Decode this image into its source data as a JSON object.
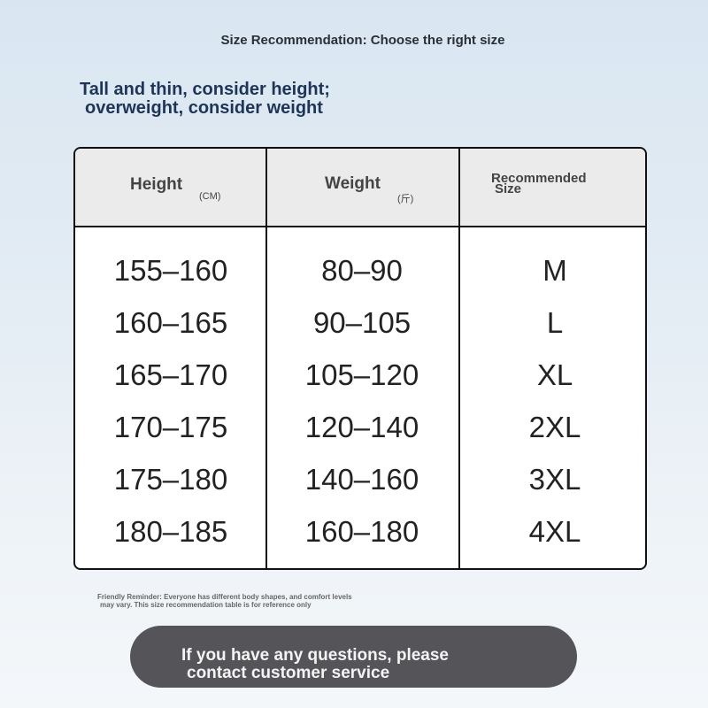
{
  "title": "Size Recommendation: Choose the right size",
  "tip": {
    "line1": "Tall and thin, consider height;",
    "line2": "overweight, consider weight"
  },
  "table": {
    "headers": [
      {
        "label": "Height",
        "unit": "(CM)"
      },
      {
        "label": "Weight",
        "unit": "(斤)"
      },
      {
        "label": "Recommended",
        "label2": "Size"
      }
    ],
    "rows": [
      [
        "155–160",
        "80–90",
        "M"
      ],
      [
        "160–165",
        "90–105",
        "L"
      ],
      [
        "165–170",
        "105–120",
        "XL"
      ],
      [
        "170–175",
        "120–140",
        "2XL"
      ],
      [
        "175–180",
        "140–160",
        "3XL"
      ],
      [
        "180–185",
        "160–180",
        "4XL"
      ]
    ]
  },
  "footnote": {
    "line1": "Friendly Reminder: Everyone has different body shapes, and comfort levels",
    "line2": "may vary. This size recommendation table is for reference only"
  },
  "cta": {
    "line1": "If you have any questions, please",
    "line2": "contact customer service"
  },
  "colors": {
    "tip_text": "#1f3558",
    "cta_bg": "#555459",
    "header_bg": "#ebebeb"
  }
}
